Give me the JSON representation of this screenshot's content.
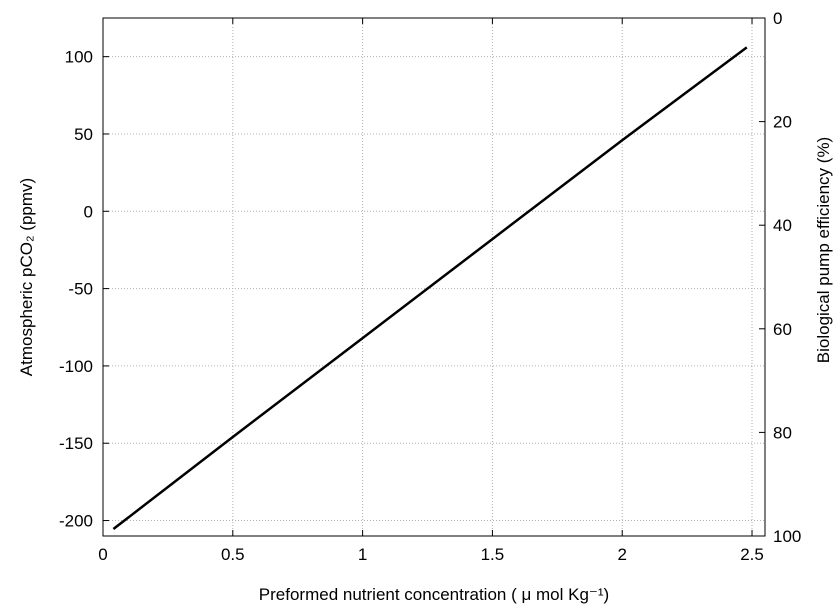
{
  "chart_data": {
    "type": "line",
    "xlabel": "Preformed nutrient concentration ( μ mol Kg⁻¹)",
    "ylabel_left": "Atmospheric pCO₂ (ppmv)",
    "ylabel_right": "Biological pump efficiency (%)",
    "xlim": [
      0,
      2.55
    ],
    "ylim_left": [
      -210,
      125
    ],
    "ylim_right": [
      100,
      0
    ],
    "grid": true,
    "x_ticks": [
      0,
      0.5,
      1,
      1.5,
      2,
      2.5
    ],
    "x_tick_labels": [
      "0",
      "0.5",
      "1",
      "1.5",
      "2",
      "2.5"
    ],
    "y_left_ticks": [
      -200,
      -150,
      -100,
      -50,
      0,
      50,
      100
    ],
    "y_left_tick_labels": [
      "-200",
      "-150",
      "-100",
      "-50",
      "0",
      "50",
      "100"
    ],
    "y_right_ticks": [
      0,
      20,
      40,
      60,
      80,
      100
    ],
    "y_right_tick_labels": [
      "0",
      "20",
      "40",
      "60",
      "80",
      "100"
    ],
    "series": [
      {
        "x": [
          0.04,
          0.5,
          1.0,
          1.5,
          2.0,
          2.48
        ],
        "y": [
          -205.5,
          -146,
          -82,
          -18,
          46,
          106
        ]
      }
    ]
  }
}
